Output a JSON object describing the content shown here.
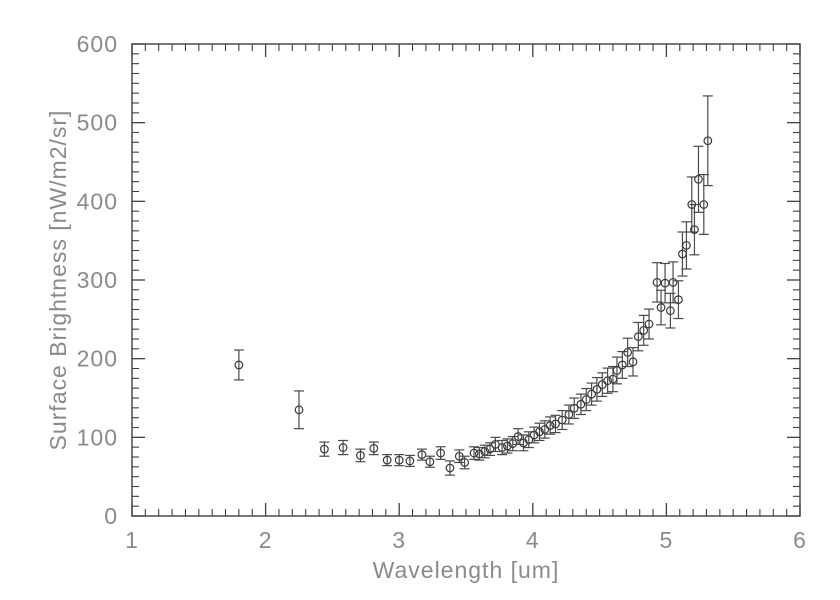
{
  "figure": {
    "background": "#ffffff"
  },
  "colors": {
    "axis": "#404040",
    "marker": "#383838",
    "error_bar": "#4a4a4a",
    "text": "#8a8a8a",
    "background": "#ffffff"
  },
  "chart_data": {
    "type": "scatter",
    "title": "",
    "xlabel": "Wavelength [um]",
    "ylabel": "Surface Brightness [nW/m2/sr]",
    "xlim": [
      1,
      6
    ],
    "ylim": [
      0,
      600
    ],
    "x_ticks": [
      1,
      2,
      3,
      4,
      5,
      6
    ],
    "x_tick_labels": [
      "1",
      "2",
      "3",
      "4",
      "5",
      "6"
    ],
    "y_ticks": [
      0,
      100,
      200,
      300,
      400,
      500,
      600
    ],
    "y_tick_labels": [
      "0",
      "100",
      "200",
      "300",
      "400",
      "500",
      "600"
    ],
    "x_minor_interval": 0.1,
    "y_minor_interval": 12.5,
    "grid": false,
    "legend_position": "none",
    "marker": "open-circle",
    "error_bars": true,
    "series": [
      {
        "name": "surface-brightness-spectrum",
        "points": [
          [
            1.8,
            192,
            19
          ],
          [
            2.25,
            135,
            24
          ],
          [
            2.44,
            85,
            9
          ],
          [
            2.58,
            87,
            9
          ],
          [
            2.71,
            77,
            8
          ],
          [
            2.81,
            86,
            8
          ],
          [
            2.91,
            71,
            7
          ],
          [
            3.0,
            71,
            7
          ],
          [
            3.08,
            70,
            7
          ],
          [
            3.17,
            78,
            7
          ],
          [
            3.23,
            69,
            7
          ],
          [
            3.31,
            80,
            8
          ],
          [
            3.38,
            61,
            9
          ],
          [
            3.45,
            76,
            8
          ],
          [
            3.49,
            68,
            8
          ],
          [
            3.56,
            80,
            8
          ],
          [
            3.6,
            79,
            8
          ],
          [
            3.64,
            82,
            8
          ],
          [
            3.68,
            85,
            8
          ],
          [
            3.72,
            91,
            9
          ],
          [
            3.77,
            87,
            9
          ],
          [
            3.81,
            89,
            9
          ],
          [
            3.85,
            92,
            9
          ],
          [
            3.89,
            101,
            10
          ],
          [
            3.93,
            93,
            10
          ],
          [
            3.97,
            97,
            10
          ],
          [
            4.01,
            103,
            10
          ],
          [
            4.05,
            107,
            11
          ],
          [
            4.09,
            110,
            11
          ],
          [
            4.13,
            115,
            11
          ],
          [
            4.17,
            117,
            11
          ],
          [
            4.22,
            122,
            12
          ],
          [
            4.27,
            129,
            12
          ],
          [
            4.31,
            137,
            13
          ],
          [
            4.36,
            142,
            13
          ],
          [
            4.4,
            148,
            14
          ],
          [
            4.44,
            155,
            14
          ],
          [
            4.48,
            161,
            15
          ],
          [
            4.52,
            167,
            15
          ],
          [
            4.56,
            172,
            16
          ],
          [
            4.6,
            174,
            16
          ],
          [
            4.63,
            185,
            17
          ],
          [
            4.67,
            192,
            17
          ],
          [
            4.71,
            208,
            18
          ],
          [
            4.75,
            196,
            18
          ],
          [
            4.79,
            228,
            18
          ],
          [
            4.83,
            236,
            19
          ],
          [
            4.87,
            244,
            19
          ],
          [
            4.93,
            297,
            25
          ],
          [
            4.96,
            265,
            22
          ],
          [
            4.99,
            296,
            25
          ],
          [
            5.03,
            261,
            22
          ],
          [
            5.05,
            297,
            26
          ],
          [
            5.09,
            275,
            24
          ],
          [
            5.12,
            333,
            28
          ],
          [
            5.15,
            344,
            30
          ],
          [
            5.19,
            396,
            35
          ],
          [
            5.21,
            364,
            32
          ],
          [
            5.24,
            428,
            42
          ],
          [
            5.28,
            396,
            38
          ],
          [
            5.31,
            477,
            57
          ]
        ]
      }
    ]
  }
}
